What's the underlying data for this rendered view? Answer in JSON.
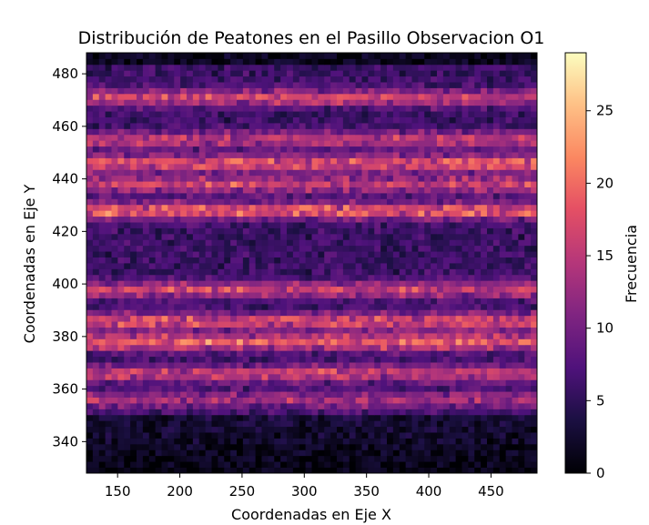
{
  "chart_data": {
    "type": "heatmap",
    "title": "Distribución de Peatones en el Pasillo Observacion O1",
    "xlabel": "Coordenadas en Eje X",
    "ylabel": "Coordenadas en Eje Y",
    "xlim": [
      125,
      487
    ],
    "ylim": [
      328,
      488
    ],
    "x_ticks": [
      150,
      200,
      250,
      300,
      350,
      400,
      450
    ],
    "y_ticks": [
      340,
      360,
      380,
      400,
      420,
      440,
      460,
      480
    ],
    "colormap": "magma",
    "colorbar": {
      "label": "Frecuencia",
      "vmin": 0,
      "vmax": 29,
      "ticks": [
        0,
        5,
        10,
        15,
        20,
        25
      ]
    },
    "bins": {
      "nx": 72,
      "ny": 72
    },
    "bands": [
      {
        "y_center": 471,
        "intensity": 12
      },
      {
        "y_center": 455,
        "intensity": 11
      },
      {
        "y_center": 446,
        "intensity": 14
      },
      {
        "y_center": 438,
        "intensity": 12
      },
      {
        "y_center": 428,
        "intensity": 15
      },
      {
        "y_center": 398,
        "intensity": 12
      },
      {
        "y_center": 386,
        "intensity": 14
      },
      {
        "y_center": 378,
        "intensity": 15
      },
      {
        "y_center": 366,
        "intensity": 12
      },
      {
        "y_center": 356,
        "intensity": 9
      }
    ]
  }
}
